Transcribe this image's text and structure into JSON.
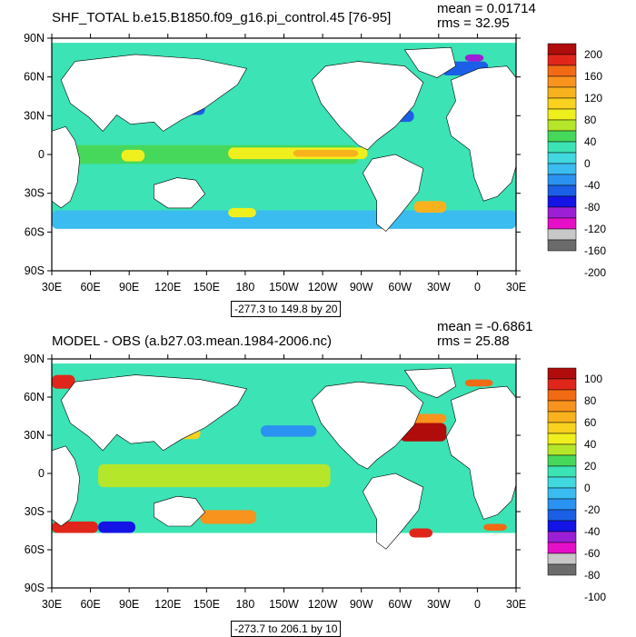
{
  "colors": {
    "land": "#ffffff",
    "top_scale": [
      "#6b6b6b",
      "#c8c8c8",
      "#e60fc8",
      "#9c1fd6",
      "#1414e6",
      "#1a5fe6",
      "#2a92f0",
      "#3bbcf0",
      "#41d8e0",
      "#3ce3b4",
      "#46d85a",
      "#b5e62a",
      "#f0ef1e",
      "#f8d21e",
      "#f8b21e",
      "#f8931e",
      "#f26a14",
      "#e0261a",
      "#b00c0c"
    ],
    "bottom_scale": [
      "#6b6b6b",
      "#c8c8c8",
      "#e60fc8",
      "#9c1fd6",
      "#1414e6",
      "#1a5fe6",
      "#2a92f0",
      "#3bbcf0",
      "#41d8e0",
      "#3ce3b4",
      "#46d85a",
      "#b5e62a",
      "#f0ef1e",
      "#f8d21e",
      "#f8b21e",
      "#f8931e",
      "#f26a14",
      "#e0261a",
      "#b00c0c"
    ]
  },
  "axes": {
    "lat_labels": [
      "90N",
      "60N",
      "30N",
      "0",
      "30S",
      "60S",
      "90S"
    ],
    "lon_labels": [
      "30E",
      "60E",
      "90E",
      "120E",
      "150E",
      "180",
      "150W",
      "120W",
      "90W",
      "60W",
      "30W",
      "0",
      "30E"
    ]
  },
  "top": {
    "title": "SHF_TOTAL b.e15.B1850.f09_g16.pi_control.45 [76-95]",
    "mean": "mean = 0.01714",
    "rms": "rms = 32.95",
    "range": "-277.3 to 149.8 by 20",
    "colorbar_labels": [
      "200",
      "160",
      "120",
      "80",
      "40",
      "0",
      "-40",
      "-80",
      "-120",
      "-160",
      "-200"
    ]
  },
  "bottom": {
    "title": "MODEL - OBS (a.b27.03.mean.1984-2006.nc)",
    "mean": "mean = -0.6861",
    "rms": "rms = 25.88",
    "range": "-273.7 to 206.1 by 10",
    "colorbar_labels": [
      "100",
      "80",
      "60",
      "40",
      "20",
      "0",
      "-20",
      "-40",
      "-60",
      "-80",
      "-100"
    ]
  }
}
